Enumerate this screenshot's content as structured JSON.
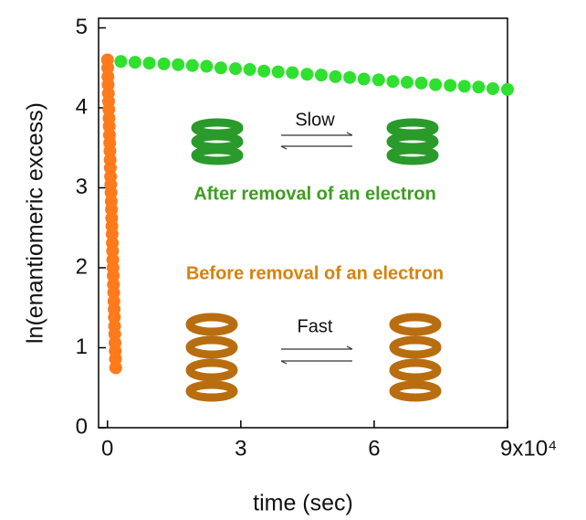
{
  "chart_data": {
    "type": "scatter",
    "xlabel": "time (sec)",
    "ylabel": "ln(enantiomeric excess)",
    "xlim": [
      -0.2,
      9
    ],
    "ylim": [
      0,
      5.12
    ],
    "xticks": [
      0,
      3,
      6,
      {
        "value": 9,
        "label": "9x10⁴"
      }
    ],
    "yticks": [
      0,
      1,
      2,
      3,
      4,
      5
    ],
    "series": [
      {
        "name": "After removal of an electron",
        "color": "#2fe02f",
        "x": [
          0.3,
          0.62,
          0.94,
          1.27,
          1.59,
          1.91,
          2.23,
          2.55,
          2.88,
          3.2,
          3.52,
          3.84,
          4.16,
          4.49,
          4.81,
          5.13,
          5.45,
          5.77,
          6.1,
          6.42,
          6.74,
          7.06,
          7.38,
          7.71,
          8.03,
          8.35,
          8.67,
          9.0
        ],
        "values": [
          4.58,
          4.57,
          4.56,
          4.55,
          4.54,
          4.53,
          4.52,
          4.5,
          4.49,
          4.48,
          4.46,
          4.45,
          4.44,
          4.42,
          4.41,
          4.39,
          4.38,
          4.36,
          4.35,
          4.33,
          4.32,
          4.31,
          4.29,
          4.28,
          4.27,
          4.26,
          4.24,
          4.23
        ]
      },
      {
        "name": "Before removal of an electron",
        "color": "#ff7a1a",
        "x": [
          0,
          0.005,
          0.01,
          0.015,
          0.02,
          0.025,
          0.03,
          0.035,
          0.04,
          0.045,
          0.05,
          0.055,
          0.06,
          0.065,
          0.07,
          0.075,
          0.08,
          0.085,
          0.09,
          0.095,
          0.1,
          0.105,
          0.11,
          0.115,
          0.12,
          0.125,
          0.13,
          0.135,
          0.14,
          0.145,
          0.15,
          0.155,
          0.16,
          0.165,
          0.17,
          0.175,
          0.18,
          0.185
        ],
        "values": [
          4.6,
          4.5,
          4.39,
          4.29,
          4.18,
          4.08,
          3.98,
          3.87,
          3.77,
          3.66,
          3.56,
          3.46,
          3.35,
          3.25,
          3.14,
          3.04,
          2.94,
          2.83,
          2.73,
          2.62,
          2.52,
          2.42,
          2.31,
          2.21,
          2.1,
          2.0,
          1.9,
          1.79,
          1.69,
          1.58,
          1.48,
          1.38,
          1.27,
          1.17,
          1.06,
          0.96,
          0.86,
          0.75
        ]
      }
    ],
    "annotations": [
      {
        "text": "Slow",
        "color": "#111111"
      },
      {
        "text": "After removal of an electron",
        "color": "#3c9e1e"
      },
      {
        "text": "Before removal of an electron",
        "color": "#d8820e"
      },
      {
        "text": "Fast",
        "color": "#111111"
      }
    ]
  }
}
